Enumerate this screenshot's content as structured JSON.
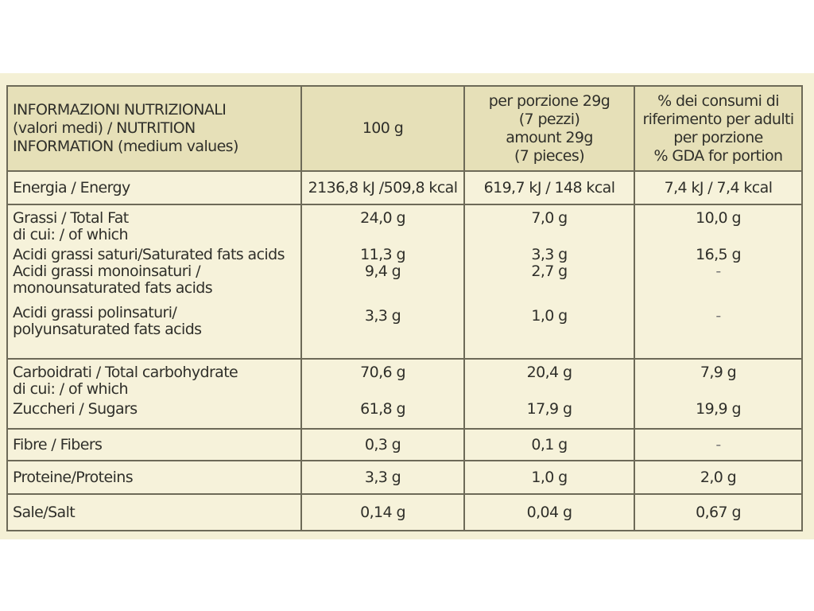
{
  "header": {
    "col0": [
      "INFORMAZIONI NUTRIZIONALI",
      "(valori medi) / NUTRITION",
      "INFORMATION (medium values)"
    ],
    "col1": [
      "100 g"
    ],
    "col2": [
      "per porzione 29g",
      "(7 pezzi)",
      "amount 29g",
      "(7 pieces)"
    ],
    "col3": [
      "% dei consumi di",
      "riferimento per adulti",
      "per porzione",
      "% GDA for portion"
    ]
  },
  "energy": {
    "label": "Energia / Energy",
    "per100": "2136,8 kJ /509,8 kcal",
    "portion": "619,7 kJ / 148 kcal",
    "gda": "7,4 kJ  / 7,4 kcal"
  },
  "fat": {
    "total_label": "Grassi / Total Fat",
    "of_which": "di cui: / of which",
    "total": {
      "per100": "24,0 g",
      "portion": "7,0 g",
      "gda": "10,0 g"
    },
    "saturated": {
      "label": "Acidi grassi saturi/Saturated fats acids",
      "per100": "11,3 g",
      "portion": "3,3 g",
      "gda": "16,5 g"
    },
    "mono": {
      "label1": "Acidi grassi monoinsaturi /",
      "label2": "monounsaturated fats acids",
      "per100": "9,4 g",
      "portion": "2,7 g",
      "gda": "-"
    },
    "poly": {
      "label1": "Acidi grassi polinsaturi/",
      "label2": "polyunsaturated fats acids",
      "per100": "3,3 g",
      "portion": "1,0 g",
      "gda": "-"
    }
  },
  "carbs": {
    "total_label": "Carboidrati / Total carbohydrate",
    "of_which": "di cui: / of which",
    "total": {
      "per100": "70,6 g",
      "portion": "20,4 g",
      "gda": "7,9 g"
    },
    "sugars": {
      "label": "Zuccheri / Sugars",
      "per100": "61,8 g",
      "portion": "17,9 g",
      "gda": "19,9 g"
    }
  },
  "fibers": {
    "label": "Fibre / Fibers",
    "per100": "0,3 g",
    "portion": "0,1 g",
    "gda": "-"
  },
  "proteins": {
    "label": "Proteine/Proteins",
    "per100": "3,3 g",
    "portion": "1,0 g",
    "gda": "2,0 g"
  },
  "salt": {
    "label": "Sale/Salt",
    "per100": "0,14 g",
    "portion": "0,04 g",
    "gda": "0,67 g"
  }
}
